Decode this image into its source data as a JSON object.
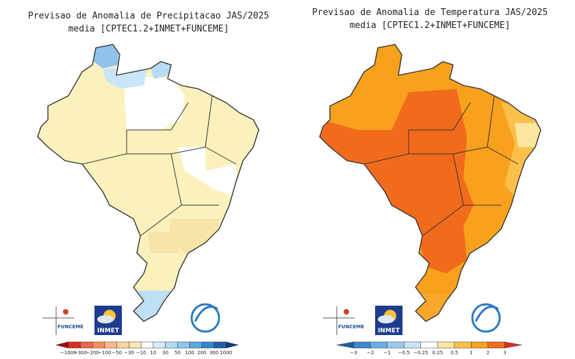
{
  "maps": [
    {
      "title": "Previsao de Anomalia de Precipitacao JAS/2025",
      "subtitle": "media [CPTEC1.2+INMET+FUNCEME]",
      "colorbar": [
        "−1000",
        "−300",
        "−200",
        "−100",
        "−50",
        "−30",
        "−10",
        "10",
        "30",
        "50",
        "100",
        "200",
        "300",
        "1000"
      ]
    },
    {
      "title": "Previsao de Anomalia de Temperatura JAS/2025",
      "subtitle": "media [CPTEC1.2+INMET+FUNCEME]",
      "colorbar": [
        "−3",
        "−2",
        "−1",
        "−0.5",
        "−0.25",
        "0.25",
        "0.5",
        "1",
        "2",
        "3"
      ]
    }
  ],
  "logos": {
    "funceme": "FUNCEME",
    "inmet": "INMET"
  }
}
